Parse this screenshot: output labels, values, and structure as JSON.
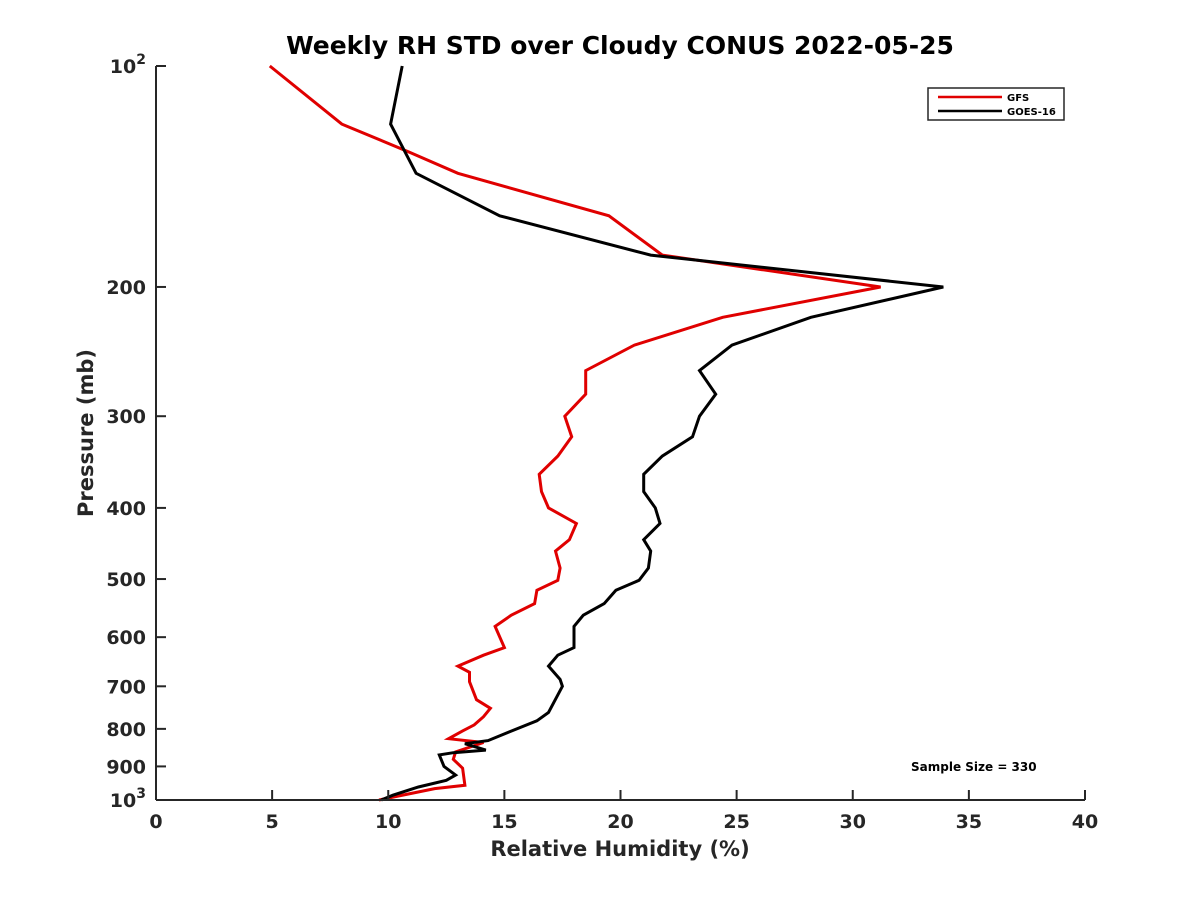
{
  "chart_data": {
    "type": "line",
    "title": "Weekly RH STD over Cloudy CONUS 2022-05-25",
    "xlabel": "Relative Humidity (%)",
    "ylabel": "Pressure (mb)",
    "xlim": [
      0,
      40
    ],
    "ylim": [
      100,
      1000
    ],
    "yscale": "log",
    "yreversed": true,
    "grid": false,
    "x_ticks": [
      0,
      5,
      10,
      15,
      20,
      25,
      30,
      35,
      40
    ],
    "x_tick_labels": [
      "0",
      "5",
      "10",
      "15",
      "20",
      "25",
      "30",
      "35",
      "40"
    ],
    "y_ticks": [
      100,
      200,
      300,
      400,
      500,
      600,
      700,
      800,
      900,
      1000
    ],
    "y_tick_labels": [
      {
        "base": "10",
        "sup": "2"
      },
      {
        "text": "200"
      },
      {
        "text": "300"
      },
      {
        "text": "400"
      },
      {
        "text": "500"
      },
      {
        "text": "600"
      },
      {
        "text": "700"
      },
      {
        "text": "800"
      },
      {
        "text": "900"
      },
      {
        "base": "10",
        "sup": "3"
      }
    ],
    "legend": {
      "placement": "top-right",
      "entries": [
        "GFS",
        "GOES-16"
      ]
    },
    "annotation": "Sample Size = 330",
    "series": [
      {
        "name": "GFS",
        "color": "#e00000",
        "points": [
          [
            4.9,
            100
          ],
          [
            8.0,
            120
          ],
          [
            10.9,
            131
          ],
          [
            13.0,
            140
          ],
          [
            19.5,
            160
          ],
          [
            21.8,
            181
          ],
          [
            31.2,
            200
          ],
          [
            24.4,
            220
          ],
          [
            20.6,
            240
          ],
          [
            18.5,
            260
          ],
          [
            18.5,
            280
          ],
          [
            17.6,
            300
          ],
          [
            17.9,
            320
          ],
          [
            17.3,
            340
          ],
          [
            16.5,
            360
          ],
          [
            16.6,
            380
          ],
          [
            16.9,
            400
          ],
          [
            18.1,
            420
          ],
          [
            17.8,
            442
          ],
          [
            17.2,
            458
          ],
          [
            17.4,
            483
          ],
          [
            17.3,
            502
          ],
          [
            16.4,
            518
          ],
          [
            16.3,
            540
          ],
          [
            15.3,
            560
          ],
          [
            14.6,
            580
          ],
          [
            15.0,
            620
          ],
          [
            14.1,
            635
          ],
          [
            13.0,
            657
          ],
          [
            13.5,
            670
          ],
          [
            13.5,
            690
          ],
          [
            13.8,
            730
          ],
          [
            14.4,
            750
          ],
          [
            14.1,
            770
          ],
          [
            13.7,
            790
          ],
          [
            13.2,
            805
          ],
          [
            12.6,
            825
          ],
          [
            14.1,
            835
          ],
          [
            12.9,
            860
          ],
          [
            12.8,
            880
          ],
          [
            13.2,
            905
          ],
          [
            13.3,
            955
          ],
          [
            12.0,
            965
          ],
          [
            9.6,
            1000
          ]
        ]
      },
      {
        "name": "GOES-16",
        "color": "#000000",
        "points": [
          [
            10.6,
            100
          ],
          [
            10.1,
            120
          ],
          [
            11.2,
            140
          ],
          [
            14.8,
            160
          ],
          [
            21.3,
            181
          ],
          [
            33.9,
            200
          ],
          [
            28.2,
            220
          ],
          [
            24.8,
            240
          ],
          [
            23.4,
            260
          ],
          [
            24.1,
            280
          ],
          [
            23.4,
            300
          ],
          [
            23.1,
            320
          ],
          [
            21.8,
            340
          ],
          [
            21.0,
            360
          ],
          [
            21.0,
            380
          ],
          [
            21.5,
            400
          ],
          [
            21.7,
            420
          ],
          [
            21.0,
            442
          ],
          [
            21.3,
            458
          ],
          [
            21.2,
            483
          ],
          [
            20.8,
            502
          ],
          [
            19.8,
            518
          ],
          [
            19.3,
            540
          ],
          [
            18.4,
            560
          ],
          [
            18.0,
            580
          ],
          [
            18.0,
            620
          ],
          [
            17.3,
            635
          ],
          [
            16.9,
            657
          ],
          [
            17.4,
            685
          ],
          [
            17.5,
            700
          ],
          [
            16.9,
            760
          ],
          [
            16.4,
            780
          ],
          [
            15.2,
            808
          ],
          [
            14.3,
            830
          ],
          [
            13.3,
            838
          ],
          [
            14.2,
            855
          ],
          [
            12.8,
            862
          ],
          [
            12.2,
            868
          ],
          [
            12.4,
            900
          ],
          [
            12.9,
            925
          ],
          [
            12.5,
            940
          ],
          [
            11.3,
            960
          ],
          [
            10.2,
            985
          ],
          [
            9.7,
            1000
          ]
        ]
      }
    ]
  }
}
